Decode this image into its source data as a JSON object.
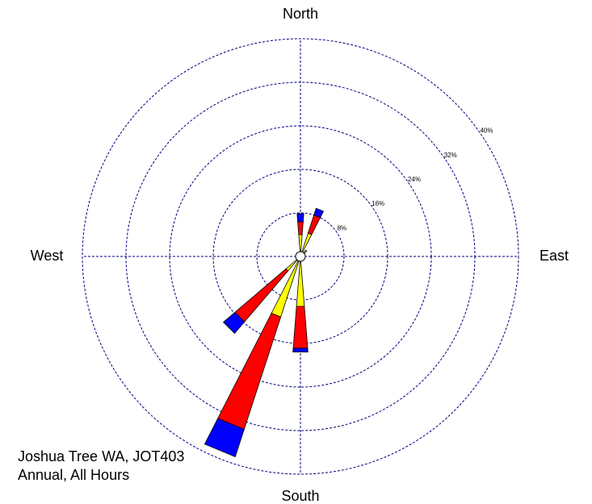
{
  "chart_data": {
    "type": "windrose",
    "title": [
      "Joshua Tree WA, JOT403",
      "Annual, All Hours"
    ],
    "x": [
      0,
      22.5,
      45,
      180,
      202.5,
      225
    ],
    "series": [
      {
        "color": "#ffff00",
        "values": [
          4,
          4.5,
          1.5,
          9.2,
          11.7,
          3.5
        ]
      },
      {
        "color": "#ff0000",
        "values": [
          2.4,
          3.5,
          0,
          7.7,
          21.7,
          12.3
        ]
      },
      {
        "color": "#0000ff",
        "values": [
          1.5,
          1.3,
          0,
          0.7,
          5.3,
          2.8
        ]
      }
    ],
    "ylim": [
      0,
      40
    ],
    "yticks": [
      {
        "value": 8,
        "label": "8%"
      },
      {
        "value": 16,
        "label": "16%"
      },
      {
        "value": 24,
        "label": "24%"
      },
      {
        "value": 32,
        "label": "32%"
      },
      {
        "value": 40,
        "label": "40%"
      }
    ],
    "xticks": [
      {
        "value": 0,
        "label": "North"
      },
      {
        "value": 90,
        "label": "East"
      },
      {
        "value": 180,
        "label": "South"
      },
      {
        "value": 270,
        "label": "West"
      }
    ],
    "grid": true
  }
}
